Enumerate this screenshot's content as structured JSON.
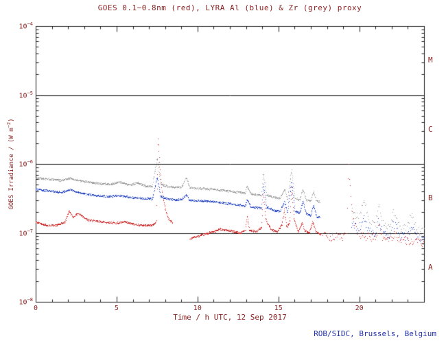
{
  "credit": "ROB/SIDC, Brussels, Belgium",
  "colors": {
    "axis_line": "#1a1a1a",
    "axis_text": "#8b2222",
    "credit_text": "#2233aa",
    "background": "#ffffff",
    "goes_red": "#cc2020",
    "lyra_al_blue": "#2040c0",
    "lyra_zr_grey": "#9a9a9a"
  },
  "chart_data": {
    "type": "scatter",
    "title": "GOES 0.1−0.8nm (red), LYRA Al (blue) & Zr (grey) proxy",
    "xlabel": "Time / h UTC, 12 Sep 2017",
    "ylabel_parts": {
      "main": "GOES Irradiance / (W m",
      "sup": "−2",
      "end": ")"
    },
    "xlim": [
      0,
      24
    ],
    "ylim": [
      1e-08,
      0.0001
    ],
    "ylog": true,
    "grid": false,
    "xticks_major": [
      0,
      5,
      10,
      15,
      20
    ],
    "xtick_minor_step": 1,
    "ytick_exponents": [
      -8,
      -7,
      -6,
      -5,
      -4
    ],
    "hlines": [
      1e-07,
      1e-06,
      1e-05
    ],
    "class_bands": [
      {
        "label": "M",
        "log_center": -4.5
      },
      {
        "label": "C",
        "log_center": -5.5
      },
      {
        "label": "B",
        "log_center": -6.5
      },
      {
        "label": "A",
        "log_center": -7.5
      }
    ],
    "series": [
      {
        "name": "GOES 0.1-0.8nm",
        "color": "#cc2020",
        "segments": [
          {
            "sparse": false,
            "points": [
              [
                0,
                1.45e-07
              ],
              [
                0.7,
                1.3e-07
              ],
              [
                1.3,
                1.3e-07
              ],
              [
                1.8,
                1.45e-07
              ],
              [
                2.05,
                2.1e-07
              ],
              [
                2.3,
                1.7e-07
              ],
              [
                2.6,
                1.95e-07
              ],
              [
                2.9,
                1.75e-07
              ],
              [
                3.2,
                1.55e-07
              ],
              [
                3.6,
                1.5e-07
              ],
              [
                4.2,
                1.45e-07
              ],
              [
                5.0,
                1.4e-07
              ],
              [
                5.5,
                1.45e-07
              ],
              [
                6.0,
                1.35e-07
              ],
              [
                6.6,
                1.3e-07
              ],
              [
                7.2,
                1.3e-07
              ],
              [
                7.45,
                1.45e-07
              ],
              [
                7.55,
                2.5e-06
              ],
              [
                7.65,
                9e-07
              ],
              [
                7.8,
                4e-07
              ],
              [
                8.0,
                2.2e-07
              ],
              [
                8.2,
                1.6e-07
              ],
              [
                8.45,
                1.4e-07
              ]
            ]
          },
          {
            "sparse": false,
            "points": [
              [
                9.5,
                8.2e-08
              ],
              [
                9.8,
                8.8e-08
              ],
              [
                10.2,
                9.2e-08
              ],
              [
                10.6,
                1e-07
              ],
              [
                11.0,
                1.05e-07
              ],
              [
                11.4,
                1.15e-07
              ],
              [
                11.8,
                1.1e-07
              ],
              [
                12.2,
                1.05e-07
              ],
              [
                12.6,
                1e-07
              ],
              [
                12.95,
                1.1e-07
              ],
              [
                13.05,
                1.8e-07
              ],
              [
                13.2,
                1.1e-07
              ],
              [
                13.6,
                1.05e-07
              ],
              [
                13.95,
                1.2e-07
              ],
              [
                14.05,
                4.2e-07
              ],
              [
                14.2,
                1.6e-07
              ],
              [
                14.5,
                1.15e-07
              ],
              [
                14.9,
                1.05e-07
              ],
              [
                15.2,
                1.3e-07
              ],
              [
                15.35,
                2.2e-07
              ],
              [
                15.5,
                1.2e-07
              ],
              [
                15.7,
                1.5e-07
              ],
              [
                15.8,
                4.5e-07
              ],
              [
                15.95,
                1.6e-07
              ],
              [
                16.2,
                1.05e-07
              ],
              [
                16.45,
                1.4e-07
              ],
              [
                16.6,
                1.1e-07
              ],
              [
                16.9,
                1e-07
              ],
              [
                17.1,
                1.5e-07
              ],
              [
                17.3,
                1.05e-07
              ],
              [
                17.6,
                9.5e-08
              ]
            ]
          },
          {
            "sparse": true,
            "points": [
              [
                17.7,
                9.2e-08
              ],
              [
                18.2,
                8.8e-08
              ],
              [
                18.7,
                8.8e-08
              ],
              [
                19.1,
                9e-08
              ]
            ]
          },
          {
            "sparse": true,
            "points": [
              [
                19.2,
                1e-07
              ],
              [
                19.32,
                1.1e-06
              ],
              [
                19.45,
                3.5e-07
              ],
              [
                19.6,
                1.6e-07
              ],
              [
                19.8,
                1.1e-07
              ],
              [
                20.1,
                9.2e-08
              ],
              [
                20.5,
                8.8e-08
              ],
              [
                21.0,
                8.6e-08
              ],
              [
                21.2,
                1.2e-07
              ],
              [
                21.4,
                8.6e-08
              ],
              [
                21.9,
                8.2e-08
              ],
              [
                22.2,
                1e-07
              ],
              [
                22.5,
                8e-08
              ],
              [
                23.0,
                7.8e-08
              ],
              [
                23.4,
                7.5e-08
              ],
              [
                24,
                7.2e-08
              ]
            ]
          }
        ]
      },
      {
        "name": "LYRA Al proxy",
        "color": "#2040c0",
        "segments": [
          {
            "sparse": false,
            "points": [
              [
                0,
                4.3e-07
              ],
              [
                0.8,
                4.1e-07
              ],
              [
                1.6,
                3.9e-07
              ],
              [
                2.1,
                4.3e-07
              ],
              [
                2.5,
                4e-07
              ],
              [
                3.0,
                3.7e-07
              ],
              [
                3.8,
                3.5e-07
              ],
              [
                4.6,
                3.4e-07
              ],
              [
                5.2,
                3.5e-07
              ],
              [
                5.8,
                3.3e-07
              ],
              [
                6.5,
                3.2e-07
              ],
              [
                7.2,
                3.15e-07
              ],
              [
                7.5,
                6.5e-07
              ],
              [
                7.7,
                3.4e-07
              ],
              [
                8.2,
                3.1e-07
              ],
              [
                9.0,
                3.05e-07
              ],
              [
                9.3,
                3.6e-07
              ],
              [
                9.5,
                3e-07
              ],
              [
                10.2,
                2.95e-07
              ],
              [
                11.0,
                2.85e-07
              ],
              [
                11.8,
                2.7e-07
              ],
              [
                12.6,
                2.55e-07
              ],
              [
                12.95,
                2.5e-07
              ],
              [
                13.05,
                3.1e-07
              ],
              [
                13.3,
                2.4e-07
              ],
              [
                13.95,
                2.3e-07
              ],
              [
                14.05,
                5.2e-07
              ],
              [
                14.25,
                2.4e-07
              ],
              [
                14.7,
                2.15e-07
              ],
              [
                15.1,
                2.05e-07
              ],
              [
                15.35,
                2.9e-07
              ],
              [
                15.55,
                2e-07
              ],
              [
                15.8,
                5.5e-07
              ],
              [
                16.0,
                2.1e-07
              ],
              [
                16.3,
                1.95e-07
              ],
              [
                16.5,
                2.9e-07
              ],
              [
                16.7,
                1.9e-07
              ],
              [
                17.0,
                1.8e-07
              ],
              [
                17.15,
                2.6e-07
              ],
              [
                17.35,
                1.75e-07
              ],
              [
                17.55,
                1.7e-07
              ]
            ]
          },
          {
            "sparse": true,
            "points": [
              [
                19.5,
                1.4e-07
              ],
              [
                19.9,
                1.15e-07
              ],
              [
                20.3,
                1.6e-07
              ],
              [
                20.6,
                1.05e-07
              ],
              [
                21.0,
                1e-07
              ],
              [
                21.15,
                1.6e-07
              ],
              [
                21.5,
                9.5e-08
              ],
              [
                21.9,
                9.2e-08
              ],
              [
                22.1,
                1.4e-07
              ],
              [
                22.5,
                9e-08
              ],
              [
                22.9,
                8.8e-08
              ],
              [
                23.2,
                1.2e-07
              ],
              [
                23.6,
                8.5e-08
              ],
              [
                24,
                8.2e-08
              ]
            ]
          }
        ]
      },
      {
        "name": "LYRA Zr proxy",
        "color": "#9a9a9a",
        "segments": [
          {
            "sparse": false,
            "points": [
              [
                0,
                6.3e-07
              ],
              [
                0.8,
                6.1e-07
              ],
              [
                1.6,
                5.8e-07
              ],
              [
                2.1,
                6.3e-07
              ],
              [
                2.5,
                5.9e-07
              ],
              [
                3.0,
                5.6e-07
              ],
              [
                3.8,
                5.3e-07
              ],
              [
                4.6,
                5.1e-07
              ],
              [
                5.2,
                5.5e-07
              ],
              [
                5.8,
                5e-07
              ],
              [
                6.3,
                5.4e-07
              ],
              [
                6.8,
                4.8e-07
              ],
              [
                7.2,
                4.75e-07
              ],
              [
                7.5,
                1.25e-06
              ],
              [
                7.7,
                5.2e-07
              ],
              [
                8.2,
                4.7e-07
              ],
              [
                9.0,
                4.6e-07
              ],
              [
                9.3,
                6.5e-07
              ],
              [
                9.5,
                4.55e-07
              ],
              [
                10.2,
                4.45e-07
              ],
              [
                11.0,
                4.3e-07
              ],
              [
                11.8,
                4.1e-07
              ],
              [
                12.6,
                3.9e-07
              ],
              [
                12.95,
                3.8e-07
              ],
              [
                13.05,
                4.8e-07
              ],
              [
                13.3,
                3.7e-07
              ],
              [
                13.95,
                3.5e-07
              ],
              [
                14.05,
                7.5e-07
              ],
              [
                14.25,
                3.6e-07
              ],
              [
                14.7,
                3.3e-07
              ],
              [
                15.1,
                3.2e-07
              ],
              [
                15.35,
                4.4e-07
              ],
              [
                15.55,
                3.1e-07
              ],
              [
                15.8,
                8.2e-07
              ],
              [
                16.0,
                3.2e-07
              ],
              [
                16.3,
                3.05e-07
              ],
              [
                16.5,
                4.4e-07
              ],
              [
                16.7,
                3e-07
              ],
              [
                17.0,
                2.95e-07
              ],
              [
                17.15,
                4e-07
              ],
              [
                17.35,
                2.9e-07
              ],
              [
                17.55,
                2.85e-07
              ]
            ]
          },
          {
            "sparse": true,
            "points": [
              [
                19.5,
                2.1e-07
              ],
              [
                19.9,
                1.7e-07
              ],
              [
                20.3,
                3e-07
              ],
              [
                20.6,
                1.5e-07
              ],
              [
                21.0,
                1.4e-07
              ],
              [
                21.15,
                2.6e-07
              ],
              [
                21.5,
                1.3e-07
              ],
              [
                21.9,
                1.25e-07
              ],
              [
                22.1,
                2.2e-07
              ],
              [
                22.5,
                1.2e-07
              ],
              [
                22.9,
                1.15e-07
              ],
              [
                23.2,
                1.9e-07
              ],
              [
                23.6,
                1.1e-07
              ],
              [
                24,
                1.05e-07
              ]
            ]
          }
        ]
      }
    ]
  }
}
